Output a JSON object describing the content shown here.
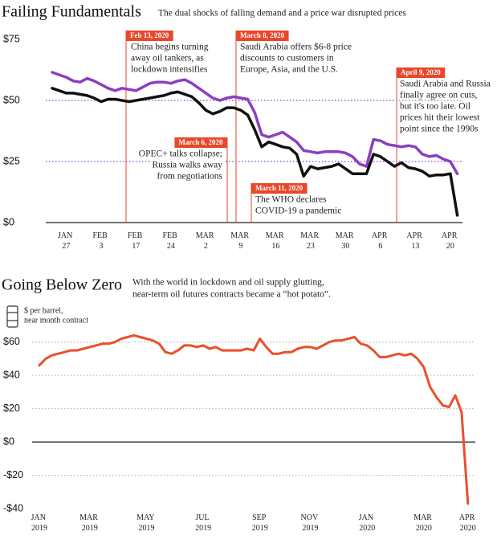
{
  "chart_data": [
    {
      "type": "line",
      "title": "Failing Fundamentals",
      "subtitle": [
        "The dual shocks of falling demand and a price war disrupted prices"
      ],
      "categories": [
        null,
        null,
        "JAN 27",
        null,
        null,
        null,
        null,
        "FEB 3",
        null,
        null,
        null,
        null,
        "FEB 17",
        null,
        null,
        null,
        null,
        "FEB 24",
        null,
        null,
        null,
        null,
        "MAR 2",
        null,
        null,
        null,
        null,
        "MAR 9",
        null,
        null,
        null,
        null,
        "MAR 16",
        null,
        null,
        null,
        null,
        "MAR 23",
        null,
        null,
        null,
        null,
        "MAR 30",
        null,
        null,
        null,
        null,
        "APR 6",
        null,
        null,
        null,
        null,
        "APR 13",
        null,
        null,
        null,
        null,
        "APR 20",
        null
      ],
      "series": [
        {
          "color": "#8b3fc0",
          "values": [
            61.5,
            60.5,
            59.5,
            58,
            57.5,
            59,
            58,
            56.5,
            55,
            54,
            55,
            54.5,
            54,
            55.5,
            57,
            57.5,
            57.5,
            57,
            58,
            58.5,
            57,
            55,
            53,
            51,
            50,
            51,
            51.5,
            51,
            50.5,
            45,
            36,
            35,
            36,
            37,
            35,
            33,
            29.5,
            29,
            28.5,
            29,
            29,
            29,
            28.5,
            27,
            24,
            23,
            34,
            33.5,
            32,
            31.5,
            31,
            31.5,
            31,
            28,
            27,
            27.5,
            26,
            25,
            20
          ]
        },
        {
          "color": "#111111",
          "values": [
            55,
            54,
            53,
            53,
            52.5,
            52,
            51,
            49.5,
            50.5,
            50.5,
            50,
            49.5,
            50,
            50.5,
            51,
            51.5,
            52,
            53,
            53.5,
            52.5,
            51.5,
            49,
            46,
            44.5,
            45.5,
            47,
            47,
            46,
            44,
            38,
            31,
            33,
            32,
            31,
            30.5,
            28,
            19,
            23,
            22,
            22.5,
            23,
            24,
            22,
            20,
            20,
            20,
            28,
            27,
            25,
            23,
            24.5,
            22.5,
            22,
            21,
            19,
            19.5,
            19.5,
            20,
            3
          ]
        }
      ],
      "ylim": [
        0,
        75
      ],
      "yticks": [
        {
          "value": 0,
          "label": "$0"
        },
        {
          "value": 25,
          "label": "$25"
        },
        {
          "value": 50,
          "label": "$50"
        },
        {
          "value": 75,
          "label": "$75"
        }
      ],
      "grid": true,
      "grid_color": "#8b3fc0",
      "annotation_color": "#e8472a",
      "annotations": [
        {
          "date": "Feb 13, 2020",
          "lines": [
            "China begins turning",
            "away oil tankers, as",
            "lockdown intensifies"
          ]
        },
        {
          "date": "March 6, 2020",
          "lines": [
            "OPEC+ talks collapse;",
            "Russia walks away",
            "from negotiations"
          ]
        },
        {
          "date": "March 8, 2020",
          "lines": [
            "Saudi Arabia offers $6-8 price",
            "discounts to customers in",
            "Europe, Asia, and the U.S."
          ]
        },
        {
          "date": "March 11, 2020",
          "lines": [
            "The WHO declares",
            "COVID-19 a pandemic"
          ]
        },
        {
          "date": "April 9, 2020",
          "lines": [
            "Saudi Arabia and Russia",
            "finally agree on cuts,",
            "but it's too late. Oil",
            "prices hit their lowest",
            "point since the 1990s"
          ]
        }
      ]
    },
    {
      "type": "line",
      "title": "Going Below Zero",
      "subtitle": [
        "With the world in lockdown and oil supply glutting,",
        "near-term oil futures contracts became a “hot potato”."
      ],
      "unit_label": [
        "$ per barrel,",
        "near month contract"
      ],
      "categories": [
        "JAN 2019",
        null,
        null,
        null,
        null,
        null,
        null,
        null,
        "MAR 2019",
        null,
        null,
        null,
        null,
        null,
        null,
        null,
        null,
        "MAY 2019",
        null,
        null,
        null,
        null,
        null,
        null,
        null,
        null,
        "JUL 2019",
        null,
        null,
        null,
        null,
        null,
        null,
        null,
        null,
        "SEP 2019",
        null,
        null,
        null,
        null,
        null,
        null,
        null,
        "NOV 2019",
        null,
        null,
        null,
        null,
        null,
        null,
        null,
        null,
        "JAN 2020",
        null,
        null,
        null,
        null,
        null,
        null,
        null,
        null,
        "MAR 2020",
        null,
        null,
        null,
        null,
        null,
        null,
        "APR 2020"
      ],
      "series": [
        {
          "color": "#e8502a",
          "values": [
            46,
            50,
            52,
            53,
            54,
            55,
            55,
            56,
            57,
            58,
            59,
            59,
            60,
            62,
            63,
            64,
            63,
            62,
            61,
            59,
            54,
            53,
            55,
            58,
            58,
            57,
            58,
            56,
            57,
            55,
            55,
            55,
            55,
            56,
            55,
            62,
            57,
            53,
            53,
            54,
            54,
            56,
            57,
            57,
            56,
            58,
            60,
            61,
            61,
            62,
            63,
            59,
            58,
            55,
            51,
            51,
            52,
            53,
            52,
            53,
            50,
            45,
            33,
            27,
            22,
            21,
            28,
            18,
            -37
          ]
        }
      ],
      "ylim": [
        -40,
        70
      ],
      "yticks": [
        {
          "value": -40,
          "label": "-$40"
        },
        {
          "value": -20,
          "label": "-$20"
        },
        {
          "value": 0,
          "label": "$0"
        },
        {
          "value": 20,
          "label": "$20"
        },
        {
          "value": 40,
          "label": "$40"
        },
        {
          "value": 60,
          "label": "$60"
        }
      ],
      "grid": true,
      "grid_color": "#bbbbbb"
    }
  ]
}
